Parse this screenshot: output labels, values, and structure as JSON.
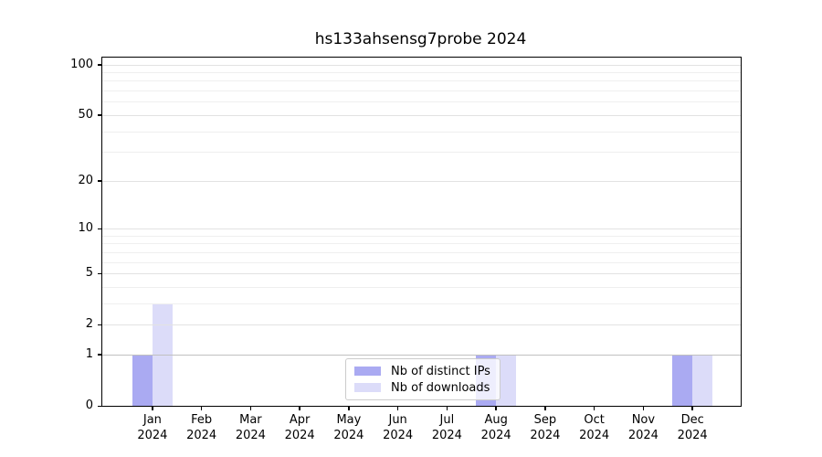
{
  "chart_data": {
    "type": "bar",
    "title": "hs133ahsensg7probe 2024",
    "categories": [
      "Jan",
      "Feb",
      "Mar",
      "Apr",
      "May",
      "Jun",
      "Jul",
      "Aug",
      "Sep",
      "Oct",
      "Nov",
      "Dec"
    ],
    "category_year": "2024",
    "series": [
      {
        "name": "Nb of distinct IPs",
        "color": "#aaaaf2",
        "values": [
          1,
          0,
          0,
          0,
          0,
          0,
          0,
          1,
          0,
          0,
          0,
          1
        ]
      },
      {
        "name": "Nb of downloads",
        "color": "#dcdcf9",
        "values": [
          3,
          0,
          0,
          0,
          0,
          0,
          0,
          1,
          0,
          0,
          0,
          1
        ]
      }
    ],
    "xlabel": "",
    "ylabel": "",
    "yscale": "log1p",
    "ylim": [
      0,
      110
    ],
    "ytick_values": [
      100,
      50,
      20,
      10,
      5,
      2,
      1,
      0
    ],
    "grid": {
      "major_values": [
        2,
        5,
        10,
        20,
        50,
        100
      ],
      "minor_values": [
        3,
        4,
        6,
        7,
        8,
        9,
        30,
        40,
        60,
        70,
        80,
        90
      ],
      "baseline_value": 1
    },
    "legend": {
      "position": "inside-bottom-center",
      "entries": [
        "Nb of distinct IPs",
        "Nb of downloads"
      ]
    }
  }
}
